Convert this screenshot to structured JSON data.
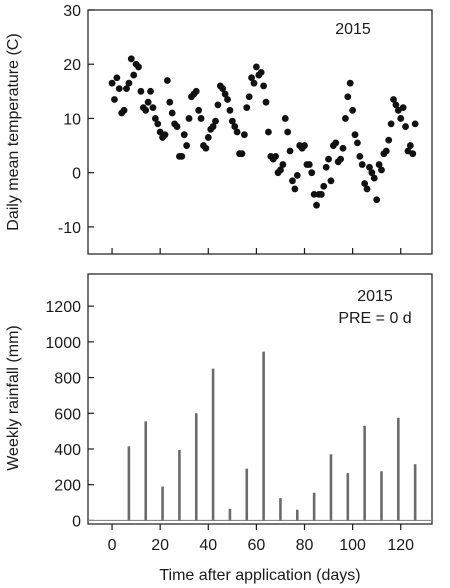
{
  "chart_data": [
    {
      "type": "scatter",
      "annotation": "2015",
      "ylabel": "Daily mean temperature (C)",
      "xlim": [
        -10,
        133
      ],
      "ylim": [
        -15,
        30
      ],
      "yticks": [
        "30",
        "20",
        "10",
        "0",
        "-10"
      ],
      "ytick_values": [
        30,
        20,
        10,
        0,
        -10
      ],
      "xticks_values": [
        0,
        20,
        40,
        60,
        80,
        100,
        120
      ],
      "grid": false,
      "color": "#111111",
      "points": [
        [
          0,
          16.5
        ],
        [
          1,
          13.5
        ],
        [
          2,
          17.5
        ],
        [
          3,
          15.5
        ],
        [
          4,
          11
        ],
        [
          5,
          11.5
        ],
        [
          6,
          15.5
        ],
        [
          7,
          16.5
        ],
        [
          8,
          21
        ],
        [
          9,
          18
        ],
        [
          10,
          20
        ],
        [
          11,
          19.5
        ],
        [
          12,
          15
        ],
        [
          13,
          12
        ],
        [
          14,
          11.5
        ],
        [
          15,
          13
        ],
        [
          16,
          15
        ],
        [
          17,
          12
        ],
        [
          18,
          10
        ],
        [
          19,
          9
        ],
        [
          20,
          7.5
        ],
        [
          21,
          6.5
        ],
        [
          22,
          7
        ],
        [
          23,
          17
        ],
        [
          24,
          13
        ],
        [
          25,
          11
        ],
        [
          26,
          9
        ],
        [
          27,
          8.5
        ],
        [
          28,
          3
        ],
        [
          29,
          3
        ],
        [
          30,
          7
        ],
        [
          31,
          5
        ],
        [
          32,
          10
        ],
        [
          33,
          14
        ],
        [
          34,
          14.5
        ],
        [
          35,
          15
        ],
        [
          36,
          11.5
        ],
        [
          37,
          10
        ],
        [
          38,
          5
        ],
        [
          39,
          4.5
        ],
        [
          40,
          6.5
        ],
        [
          41,
          8
        ],
        [
          42,
          8.5
        ],
        [
          43,
          9.5
        ],
        [
          44,
          12.5
        ],
        [
          45,
          16
        ],
        [
          46,
          15.5
        ],
        [
          47,
          14.5
        ],
        [
          48,
          13.5
        ],
        [
          49,
          11.5
        ],
        [
          50,
          9.5
        ],
        [
          51,
          8.5
        ],
        [
          52,
          7.5
        ],
        [
          53,
          3.5
        ],
        [
          54,
          3.5
        ],
        [
          55,
          7
        ],
        [
          56,
          12
        ],
        [
          57,
          14
        ],
        [
          58,
          17.5
        ],
        [
          59,
          16.5
        ],
        [
          60,
          19.5
        ],
        [
          61,
          18
        ],
        [
          62,
          18.5
        ],
        [
          63,
          16
        ],
        [
          64,
          13
        ],
        [
          65,
          7.5
        ],
        [
          66,
          3
        ],
        [
          67,
          2.5
        ],
        [
          68,
          3
        ],
        [
          69,
          0
        ],
        [
          70,
          0.5
        ],
        [
          71,
          1.5
        ],
        [
          72,
          10
        ],
        [
          73,
          7.5
        ],
        [
          74,
          4
        ],
        [
          75,
          -1.5
        ],
        [
          76,
          -3
        ],
        [
          77,
          -0.5
        ],
        [
          78,
          5
        ],
        [
          79,
          4.5
        ],
        [
          80,
          5
        ],
        [
          81,
          1.5
        ],
        [
          82,
          1.5
        ],
        [
          83,
          0
        ],
        [
          84,
          -4
        ],
        [
          85,
          -6
        ],
        [
          86,
          -4
        ],
        [
          87,
          -4
        ],
        [
          88,
          -2.5
        ],
        [
          89,
          1
        ],
        [
          90,
          2.5
        ],
        [
          91,
          -1.5
        ],
        [
          92,
          5
        ],
        [
          93,
          5.5
        ],
        [
          94,
          2
        ],
        [
          95,
          2.5
        ],
        [
          96,
          4.5
        ],
        [
          97,
          10
        ],
        [
          98,
          14
        ],
        [
          99,
          16.5
        ],
        [
          100,
          11.5
        ],
        [
          101,
          7
        ],
        [
          102,
          5.5
        ],
        [
          103,
          3
        ],
        [
          104,
          1.5
        ],
        [
          105,
          -2
        ],
        [
          106,
          -3
        ],
        [
          107,
          1
        ],
        [
          108,
          0
        ],
        [
          109,
          -1
        ],
        [
          110,
          -5
        ],
        [
          111,
          1.5
        ],
        [
          112,
          0.5
        ],
        [
          113,
          3.5
        ],
        [
          114,
          4
        ],
        [
          115,
          6
        ],
        [
          116,
          9
        ],
        [
          117,
          13.5
        ],
        [
          118,
          12.5
        ],
        [
          119,
          11.5
        ],
        [
          120,
          10
        ],
        [
          121,
          12
        ],
        [
          122,
          8.5
        ],
        [
          123,
          4
        ],
        [
          124,
          5
        ],
        [
          125,
          3.5
        ],
        [
          126,
          9
        ]
      ]
    },
    {
      "type": "bar",
      "annotation_lines": [
        "2015",
        "PRE = 0 d"
      ],
      "xlabel": "Time after application (days)",
      "ylabel": "Weekly rainfall (mm)",
      "xlim": [
        -10,
        133
      ],
      "ylim": [
        -20,
        1380
      ],
      "yticks": [
        "1200",
        "1000",
        "800",
        "600",
        "400",
        "200",
        "0"
      ],
      "ytick_values": [
        1200,
        1000,
        800,
        600,
        400,
        200,
        0
      ],
      "xticks": [
        "0",
        "20",
        "40",
        "60",
        "80",
        "100",
        "120"
      ],
      "xtick_values": [
        0,
        20,
        40,
        60,
        80,
        100,
        120
      ],
      "grid": false,
      "color": "#6b6b6b",
      "x": [
        7,
        14,
        21,
        28,
        35,
        42,
        49,
        56,
        63,
        70,
        77,
        84,
        91,
        98,
        105,
        112,
        119,
        126
      ],
      "values": [
        415,
        555,
        190,
        395,
        600,
        850,
        65,
        290,
        945,
        125,
        60,
        155,
        370,
        265,
        530,
        275,
        575,
        315
      ]
    }
  ]
}
